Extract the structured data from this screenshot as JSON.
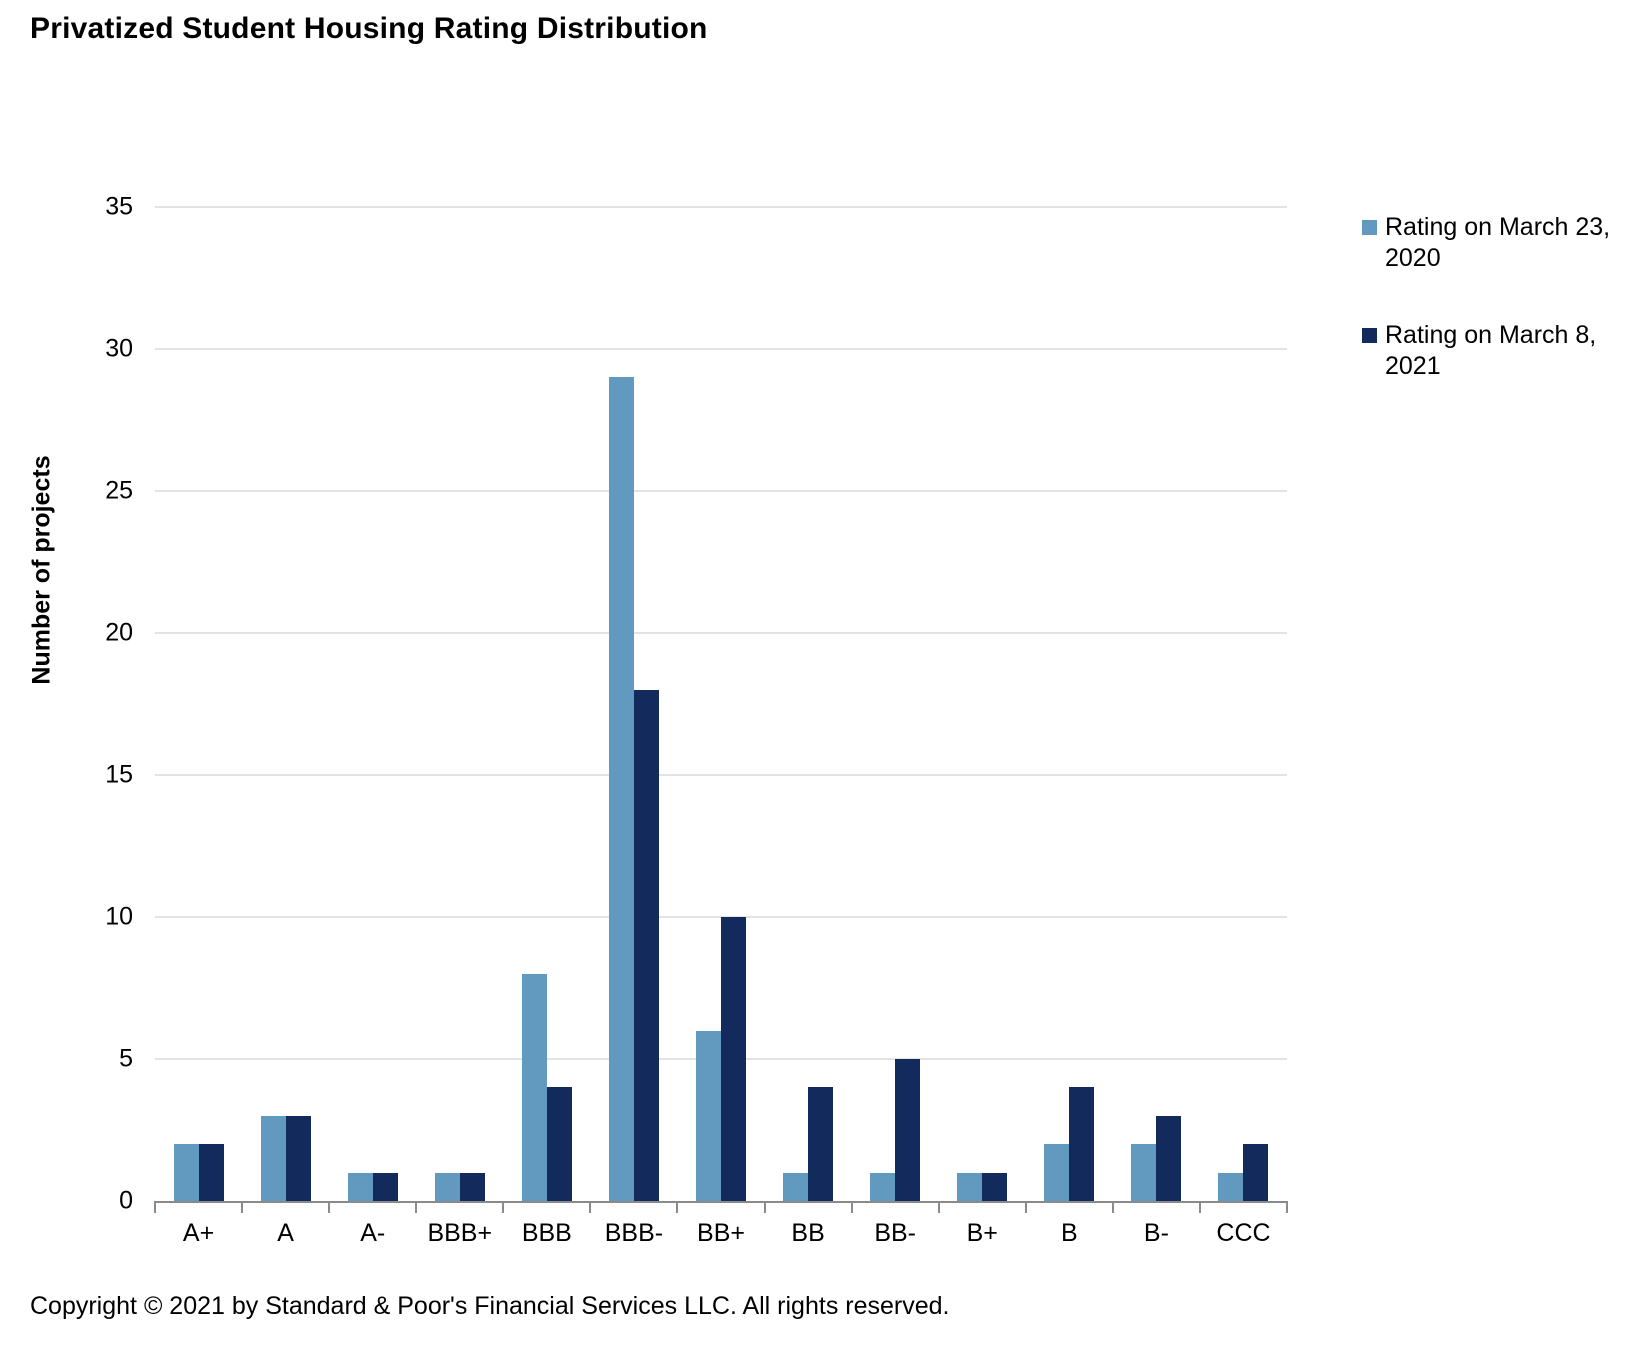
{
  "title": "Privatized Student Housing Rating Distribution",
  "copyright": "Copyright © 2021 by Standard & Poor's Financial Services LLC. All rights reserved.",
  "colors": {
    "series_2020": "#6299BE",
    "series_2021": "#122B5C",
    "gridline": "#E3E3E3",
    "axis_line": "#8A8A8A",
    "text": "#000000"
  },
  "chart_data": {
    "type": "bar",
    "title": "Privatized Student Housing Rating Distribution",
    "xlabel": "",
    "ylabel": "Number of projects",
    "categories": [
      "A+",
      "A",
      "A-",
      "BBB+",
      "BBB",
      "BBB-",
      "BB+",
      "BB",
      "BB-",
      "B+",
      "B",
      "B-",
      "CCC"
    ],
    "series": [
      {
        "name": "Rating on March 23, 2020",
        "legend_label": "Rating on March 23, 2020",
        "color": "#6299BE",
        "values": [
          2,
          3,
          1,
          1,
          8,
          29,
          6,
          1,
          1,
          1,
          2,
          2,
          1
        ]
      },
      {
        "name": "Rating on March 8, 2021",
        "legend_label": "Rating on March 8, 2021",
        "color": "#122B5C",
        "values": [
          2,
          3,
          1,
          1,
          4,
          18,
          10,
          4,
          5,
          1,
          4,
          3,
          2
        ]
      }
    ],
    "ylim": [
      0,
      35
    ],
    "ytick_step": 5,
    "yticks": [
      0,
      5,
      10,
      15,
      20,
      25,
      30,
      35
    ],
    "grid": true,
    "legend_position": "right"
  }
}
